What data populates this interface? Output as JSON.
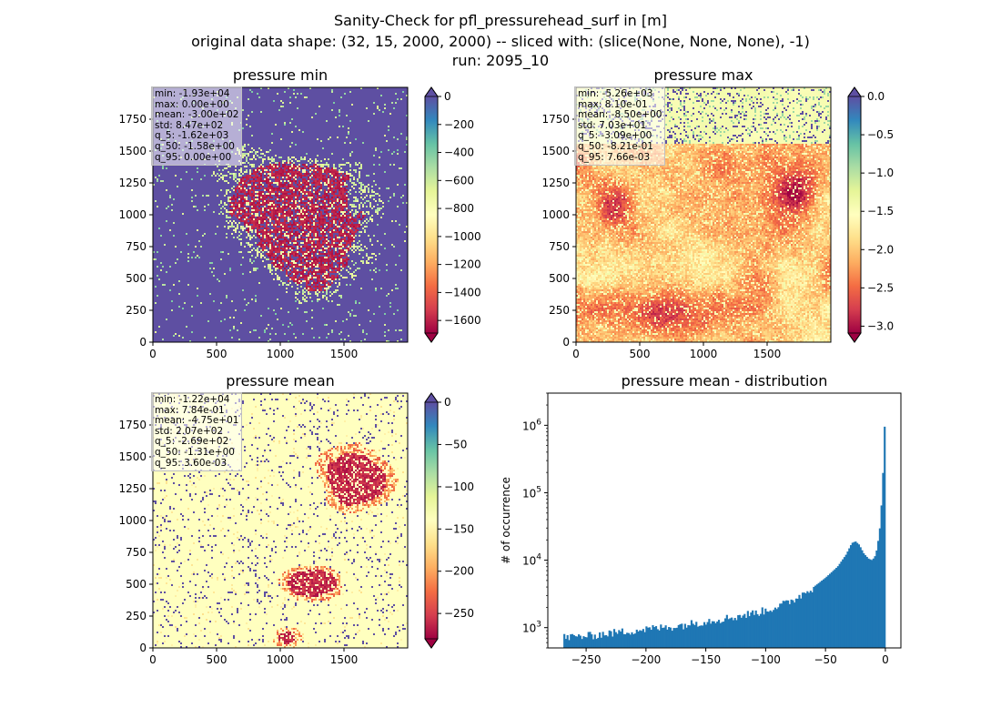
{
  "figure": {
    "title_lines": [
      "Sanity-Check for pfl_pressurehead_surf in [m]",
      "original data shape: (32, 15, 2000, 2000) -- sliced with: (slice(None, None, None), -1)",
      "run: 2095_10"
    ]
  },
  "colors": {
    "spectral_low": "#9e0142",
    "spectral_mid": "#ffffbf",
    "spectral_high": "#5e4fa2",
    "hist_bar": "#1f77b4"
  },
  "chart_data": [
    {
      "type": "heatmap",
      "id": "pmin",
      "title": "pressure min",
      "colormap": "Spectral",
      "xlim": [
        0,
        2000
      ],
      "ylim": [
        0,
        2000
      ],
      "xticks": [
        0,
        500,
        1000,
        1500
      ],
      "yticks": [
        0,
        250,
        500,
        750,
        1000,
        1250,
        1500,
        1750
      ],
      "colorbar": {
        "range": [
          -1690,
          0
        ],
        "ticks": [
          0,
          -200,
          -400,
          -600,
          -800,
          -1000,
          -1200,
          -1400,
          -1600
        ],
        "tick_labels": [
          "0",
          "−200",
          "−400",
          "−600",
          "−800",
          "−1000",
          "−1200",
          "−1400",
          "−1600"
        ]
      },
      "stats": [
        "min: -1.93e+04",
        "max: 0.00e+00",
        "mean: -3.00e+02",
        "std: 8.47e+02",
        "q_5: -1.62e+03",
        "q_50: -1.58e+00",
        "q_95: 0.00e+00"
      ]
    },
    {
      "type": "heatmap",
      "id": "pmax",
      "title": "pressure max",
      "colormap": "Spectral",
      "xlim": [
        0,
        2000
      ],
      "ylim": [
        0,
        2000
      ],
      "xticks": [
        0,
        500,
        1000,
        1500
      ],
      "yticks": [
        0,
        250,
        500,
        750,
        1000,
        1250,
        1500,
        1750
      ],
      "colorbar": {
        "range": [
          -3.09,
          0.0
        ],
        "ticks": [
          0.0,
          -0.5,
          -1.0,
          -1.5,
          -2.0,
          -2.5,
          -3.0
        ],
        "tick_labels": [
          "0.0",
          "−0.5",
          "−1.0",
          "−1.5",
          "−2.0",
          "−2.5",
          "−3.0"
        ]
      },
      "stats": [
        "min: -5.26e+03",
        "max: 8.10e-01",
        "mean: -8.50e+00",
        "std: 7.03e+01",
        "q_5: -3.09e+00",
        "q_50: -8.21e-01",
        "q_95: 7.66e-03"
      ]
    },
    {
      "type": "heatmap",
      "id": "pmean",
      "title": "pressure mean",
      "colormap": "Spectral",
      "xlim": [
        0,
        2000
      ],
      "ylim": [
        0,
        2000
      ],
      "xticks": [
        0,
        500,
        1000,
        1500
      ],
      "yticks": [
        0,
        250,
        500,
        750,
        1000,
        1250,
        1500,
        1750
      ],
      "colorbar": {
        "range": [
          -280,
          0
        ],
        "ticks": [
          0,
          -50,
          -100,
          -150,
          -200,
          -250
        ],
        "tick_labels": [
          "0",
          "−50",
          "−100",
          "−150",
          "−200",
          "−250"
        ]
      },
      "stats": [
        "min: -1.22e+04",
        "max: 7.84e-01",
        "mean: -4.75e+01",
        "std: 2.07e+02",
        "q_5: -2.69e+02",
        "q_50: -1.31e+00",
        "q_95: 3.60e-03"
      ]
    },
    {
      "type": "bar",
      "id": "hist",
      "title": "pressure mean - distribution",
      "xlabel": "",
      "ylabel": "# of occurrence",
      "yscale": "log",
      "xlim": [
        -282,
        13
      ],
      "ylim": [
        500,
        3000000
      ],
      "xticks": [
        -250,
        -200,
        -150,
        -100,
        -50,
        0
      ],
      "xtick_labels": [
        "−250",
        "−200",
        "−150",
        "−100",
        "−50",
        "0"
      ],
      "yticks": [
        1000,
        10000,
        100000,
        1000000
      ],
      "bin_range": [
        -269,
        0
      ],
      "anchors": [
        [
          -269,
          720
        ],
        [
          -250,
          750
        ],
        [
          -225,
          850
        ],
        [
          -200,
          950
        ],
        [
          -175,
          1050
        ],
        [
          -150,
          1250
        ],
        [
          -125,
          1450
        ],
        [
          -100,
          1800
        ],
        [
          -80,
          2400
        ],
        [
          -60,
          4000
        ],
        [
          -50,
          5500
        ],
        [
          -40,
          8000
        ],
        [
          -33,
          12000
        ],
        [
          -28,
          18000
        ],
        [
          -25,
          19000
        ],
        [
          -22,
          17000
        ],
        [
          -18,
          12500
        ],
        [
          -14,
          10500
        ],
        [
          -11,
          10000
        ],
        [
          -8,
          12000
        ],
        [
          -5,
          25000
        ],
        [
          -3,
          80000
        ],
        [
          -2,
          200000
        ],
        [
          -1,
          700000
        ],
        [
          0,
          1800000
        ]
      ]
    }
  ]
}
